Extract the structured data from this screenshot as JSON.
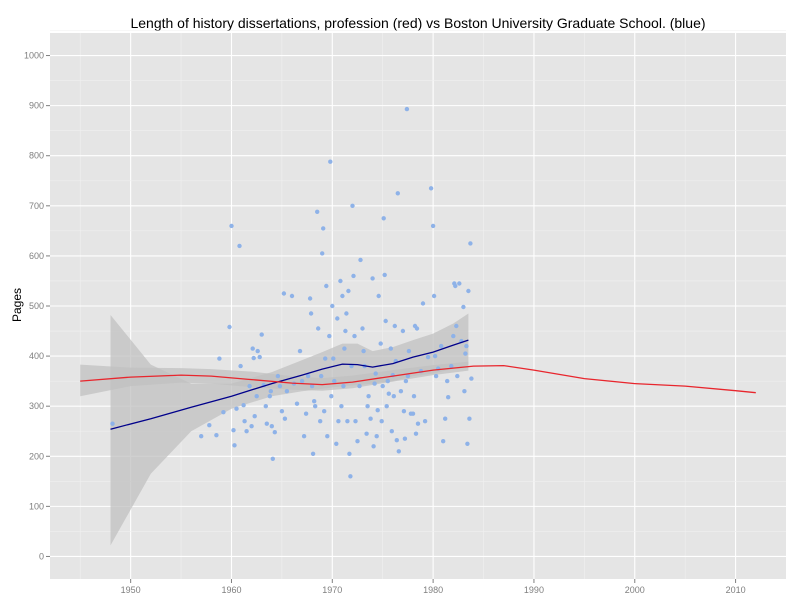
{
  "chart_data": {
    "type": "scatter",
    "title": "Length of history dissertations, profession (red) vs Boston University Graduate School. (blue)",
    "xlabel": "",
    "ylabel": "Pages",
    "xlim": [
      1942,
      2015
    ],
    "ylim": [
      -45,
      1045
    ],
    "x_ticks": [
      1950,
      1960,
      1970,
      1980,
      1990,
      2000,
      2010
    ],
    "y_ticks": [
      0,
      100,
      200,
      300,
      400,
      500,
      600,
      700,
      800,
      900,
      1000
    ],
    "grid": true,
    "colors": {
      "panel": "#e5e5e5",
      "grid_major": "#ffffff",
      "grid_minor": "#f0f0f0",
      "points": "#8eb2e8",
      "blue_line": "#00008b",
      "red_line": "#e8262d",
      "ribbon": "#c0c0c0"
    },
    "series": [
      {
        "name": "Boston University Graduate School (points)",
        "kind": "points",
        "points": [
          [
            1948.2,
            265
          ],
          [
            1957.0,
            240
          ],
          [
            1957.8,
            262
          ],
          [
            1958.5,
            242
          ],
          [
            1958.8,
            395
          ],
          [
            1959.2,
            288
          ],
          [
            1959.8,
            458
          ],
          [
            1960.0,
            660
          ],
          [
            1960.2,
            252
          ],
          [
            1960.3,
            222
          ],
          [
            1960.5,
            295
          ],
          [
            1960.8,
            620
          ],
          [
            1960.9,
            380
          ],
          [
            1961.2,
            302
          ],
          [
            1961.3,
            270
          ],
          [
            1961.5,
            250
          ],
          [
            1961.8,
            340
          ],
          [
            1962.0,
            260
          ],
          [
            1962.1,
            415
          ],
          [
            1962.2,
            396
          ],
          [
            1962.3,
            280
          ],
          [
            1962.5,
            320
          ],
          [
            1962.6,
            410
          ],
          [
            1962.8,
            398
          ],
          [
            1963.0,
            443
          ],
          [
            1963.2,
            342
          ],
          [
            1963.4,
            300
          ],
          [
            1963.5,
            265
          ],
          [
            1963.8,
            320
          ],
          [
            1963.9,
            330
          ],
          [
            1964.0,
            260
          ],
          [
            1964.1,
            195
          ],
          [
            1964.3,
            248
          ],
          [
            1964.6,
            360
          ],
          [
            1964.8,
            340
          ],
          [
            1965.0,
            290
          ],
          [
            1965.2,
            525
          ],
          [
            1965.3,
            275
          ],
          [
            1965.5,
            330
          ],
          [
            1966.0,
            520
          ],
          [
            1966.2,
            345
          ],
          [
            1966.5,
            305
          ],
          [
            1966.8,
            410
          ],
          [
            1967.0,
            350
          ],
          [
            1967.2,
            240
          ],
          [
            1967.4,
            285
          ],
          [
            1967.6,
            360
          ],
          [
            1967.8,
            515
          ],
          [
            1967.9,
            485
          ],
          [
            1968.0,
            340
          ],
          [
            1968.1,
            205
          ],
          [
            1968.2,
            310
          ],
          [
            1968.3,
            300
          ],
          [
            1968.5,
            688
          ],
          [
            1968.6,
            455
          ],
          [
            1968.8,
            270
          ],
          [
            1968.9,
            360
          ],
          [
            1969.0,
            605
          ],
          [
            1969.1,
            655
          ],
          [
            1969.2,
            290
          ],
          [
            1969.3,
            395
          ],
          [
            1969.4,
            540
          ],
          [
            1969.5,
            240
          ],
          [
            1969.7,
            440
          ],
          [
            1969.8,
            788
          ],
          [
            1969.9,
            320
          ],
          [
            1970.0,
            500
          ],
          [
            1970.1,
            395
          ],
          [
            1970.2,
            350
          ],
          [
            1970.4,
            225
          ],
          [
            1970.5,
            475
          ],
          [
            1970.6,
            270
          ],
          [
            1970.8,
            550
          ],
          [
            1970.9,
            300
          ],
          [
            1971.0,
            520
          ],
          [
            1971.1,
            340
          ],
          [
            1971.2,
            415
          ],
          [
            1971.3,
            450
          ],
          [
            1971.4,
            485
          ],
          [
            1971.5,
            270
          ],
          [
            1971.6,
            530
          ],
          [
            1971.7,
            205
          ],
          [
            1971.8,
            160
          ],
          [
            1971.9,
            380
          ],
          [
            1972.0,
            700
          ],
          [
            1972.1,
            560
          ],
          [
            1972.2,
            440
          ],
          [
            1972.3,
            270
          ],
          [
            1972.5,
            230
          ],
          [
            1972.7,
            340
          ],
          [
            1972.8,
            592
          ],
          [
            1973.0,
            455
          ],
          [
            1973.1,
            410
          ],
          [
            1973.2,
            380
          ],
          [
            1973.4,
            245
          ],
          [
            1973.5,
            300
          ],
          [
            1973.6,
            320
          ],
          [
            1973.8,
            275
          ],
          [
            1974.0,
            555
          ],
          [
            1974.1,
            220
          ],
          [
            1974.2,
            345
          ],
          [
            1974.3,
            365
          ],
          [
            1974.4,
            240
          ],
          [
            1974.5,
            292
          ],
          [
            1974.6,
            520
          ],
          [
            1974.8,
            425
          ],
          [
            1974.9,
            270
          ],
          [
            1975.0,
            340
          ],
          [
            1975.1,
            675
          ],
          [
            1975.2,
            562
          ],
          [
            1975.3,
            470
          ],
          [
            1975.4,
            300
          ],
          [
            1975.5,
            350
          ],
          [
            1975.6,
            325
          ],
          [
            1975.8,
            415
          ],
          [
            1975.9,
            250
          ],
          [
            1976.0,
            362
          ],
          [
            1976.1,
            320
          ],
          [
            1976.2,
            460
          ],
          [
            1976.3,
            390
          ],
          [
            1976.4,
            232
          ],
          [
            1976.5,
            725
          ],
          [
            1976.6,
            210
          ],
          [
            1976.8,
            330
          ],
          [
            1977.0,
            450
          ],
          [
            1977.1,
            290
          ],
          [
            1977.2,
            235
          ],
          [
            1977.3,
            350
          ],
          [
            1977.4,
            893
          ],
          [
            1977.5,
            360
          ],
          [
            1977.6,
            410
          ],
          [
            1977.8,
            285
          ],
          [
            1978.0,
            285
          ],
          [
            1978.1,
            320
          ],
          [
            1978.2,
            460
          ],
          [
            1978.3,
            245
          ],
          [
            1978.4,
            455
          ],
          [
            1978.5,
            265
          ],
          [
            1978.8,
            370
          ],
          [
            1979.0,
            505
          ],
          [
            1979.2,
            270
          ],
          [
            1979.5,
            398
          ],
          [
            1979.8,
            735
          ],
          [
            1980.0,
            660
          ],
          [
            1980.1,
            520
          ],
          [
            1980.2,
            400
          ],
          [
            1980.3,
            360
          ],
          [
            1980.5,
            375
          ],
          [
            1980.8,
            420
          ],
          [
            1981.0,
            230
          ],
          [
            1981.2,
            275
          ],
          [
            1981.4,
            350
          ],
          [
            1981.5,
            318
          ],
          [
            1981.8,
            380
          ],
          [
            1982.0,
            440
          ],
          [
            1982.1,
            545
          ],
          [
            1982.2,
            540
          ],
          [
            1982.3,
            460
          ],
          [
            1982.4,
            360
          ],
          [
            1982.6,
            545
          ],
          [
            1982.8,
            430
          ],
          [
            1983.0,
            498
          ],
          [
            1983.1,
            330
          ],
          [
            1983.2,
            405
          ],
          [
            1983.3,
            420
          ],
          [
            1983.4,
            225
          ],
          [
            1983.5,
            530
          ],
          [
            1983.6,
            275
          ],
          [
            1983.7,
            625
          ],
          [
            1983.8,
            355
          ]
        ]
      },
      {
        "name": "Boston University Graduate School (trend)",
        "kind": "line",
        "color": "#00008b",
        "x": [
          1948,
          1952,
          1956,
          1960,
          1964,
          1967,
          1969,
          1971,
          1972.5,
          1974,
          1976,
          1978,
          1980,
          1982,
          1983.5
        ],
        "y": [
          254,
          275,
          298,
          320,
          345,
          362,
          374,
          384,
          383,
          378,
          385,
          398,
          408,
          422,
          432
        ],
        "band_lo": [
          22,
          165,
          250,
          295,
          320,
          330,
          335,
          340,
          342,
          345,
          350,
          360,
          365,
          375,
          382
        ],
        "band_hi": [
          482,
          383,
          345,
          345,
          368,
          392,
          408,
          425,
          425,
          410,
          418,
          432,
          445,
          465,
          485
        ]
      },
      {
        "name": "profession (trend)",
        "kind": "line",
        "color": "#e8262d",
        "x": [
          1945,
          1950,
          1955,
          1958,
          1962,
          1966,
          1969,
          1972,
          1976,
          1980,
          1984,
          1987,
          1990,
          1995,
          2000,
          2005,
          2010,
          2012
        ],
        "y": [
          350,
          358,
          362,
          360,
          353,
          346,
          343,
          348,
          360,
          372,
          380,
          381,
          372,
          355,
          345,
          340,
          331,
          327
        ],
        "band_lo": [
          320,
          340,
          347,
          345,
          338,
          333,
          331,
          336,
          349,
          362,
          371
        ],
        "band_hi": [
          383,
          377,
          376,
          374,
          369,
          360,
          356,
          361,
          372,
          382,
          389
        ],
        "band_x": [
          1945,
          1950,
          1955,
          1958,
          1962,
          1966,
          1969,
          1972,
          1976,
          1980,
          1983.5
        ]
      }
    ]
  }
}
